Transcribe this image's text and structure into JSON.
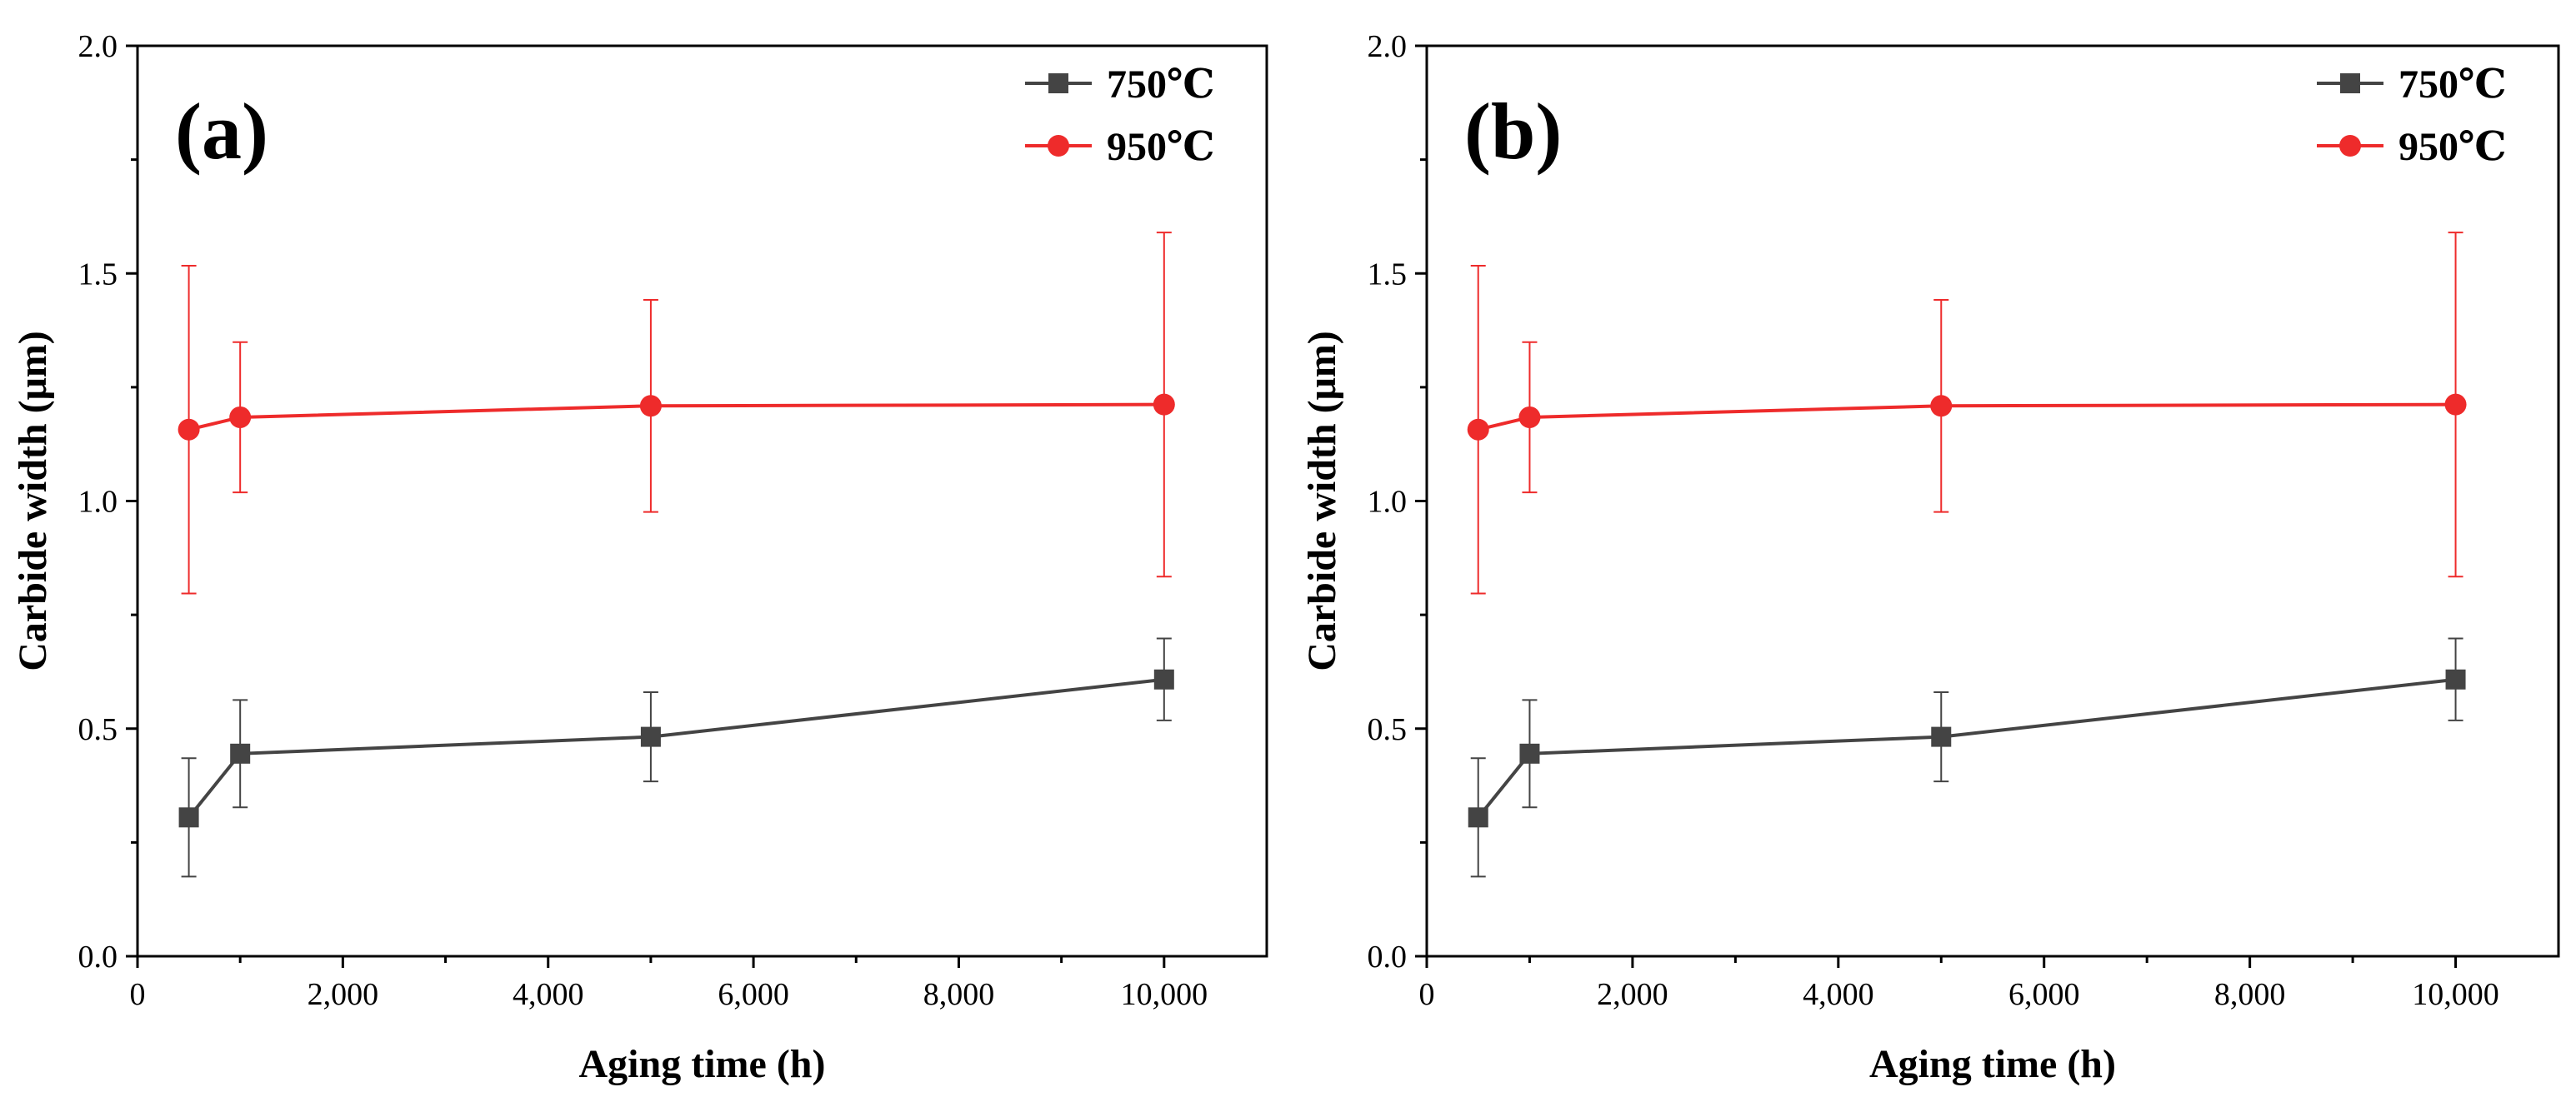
{
  "figure": {
    "panels": [
      "(a)",
      "(b)"
    ]
  },
  "colors": {
    "series_750": "#444444",
    "series_950": "#ee2b2b",
    "axis": "#000000"
  },
  "chart_data": [
    {
      "panel_label": "(a)",
      "type": "line",
      "xlabel": "Aging time (h)",
      "ylabel": "Carbide width (μm)",
      "xlim": [
        0,
        11000
      ],
      "ylim": [
        0,
        2.0
      ],
      "x_ticks": [
        0,
        2000,
        4000,
        6000,
        8000,
        10000
      ],
      "x_tick_labels": [
        "0",
        "2,000",
        "4,000",
        "6,000",
        "8,000",
        "10,000"
      ],
      "y_ticks": [
        0,
        0.5,
        1.0,
        1.5,
        2.0
      ],
      "y_tick_labels": [
        "0.0",
        "0.5",
        "1.0",
        "1.5",
        "2.0"
      ],
      "legend_position": "top-right",
      "series": [
        {
          "name": "750℃",
          "marker": "square",
          "color": "#444444",
          "x": [
            500,
            1000,
            5000,
            10000
          ],
          "y": [
            0.305,
            0.445,
            0.482,
            0.608
          ],
          "err": [
            0.13,
            0.118,
            0.098,
            0.09
          ]
        },
        {
          "name": "950℃",
          "marker": "circle",
          "color": "#ee2b2b",
          "x": [
            500,
            1000,
            5000,
            10000
          ],
          "y": [
            1.157,
            1.184,
            1.209,
            1.212
          ],
          "err": [
            0.36,
            0.165,
            0.233,
            0.378
          ]
        }
      ]
    },
    {
      "panel_label": "(b)",
      "type": "line",
      "xlabel": "Aging time (h)",
      "ylabel": "Carbide width (μm)",
      "xlim": [
        0,
        11000
      ],
      "ylim": [
        0,
        2.0
      ],
      "x_ticks": [
        0,
        2000,
        4000,
        6000,
        8000,
        10000
      ],
      "x_tick_labels": [
        "0",
        "2,000",
        "4,000",
        "6,000",
        "8,000",
        "10,000"
      ],
      "y_ticks": [
        0,
        0.5,
        1.0,
        1.5,
        2.0
      ],
      "y_tick_labels": [
        "0.0",
        "0.5",
        "1.0",
        "1.5",
        "2.0"
      ],
      "legend_position": "top-right",
      "series": [
        {
          "name": "750℃",
          "marker": "square",
          "color": "#444444",
          "x": [
            500,
            1000,
            5000,
            10000
          ],
          "y": [
            0.305,
            0.445,
            0.482,
            0.608
          ],
          "err": [
            0.13,
            0.118,
            0.098,
            0.09
          ]
        },
        {
          "name": "950℃",
          "marker": "circle",
          "color": "#ee2b2b",
          "x": [
            500,
            1000,
            5000,
            10000
          ],
          "y": [
            1.157,
            1.184,
            1.209,
            1.212
          ],
          "err": [
            0.36,
            0.165,
            0.233,
            0.378
          ]
        }
      ]
    }
  ]
}
